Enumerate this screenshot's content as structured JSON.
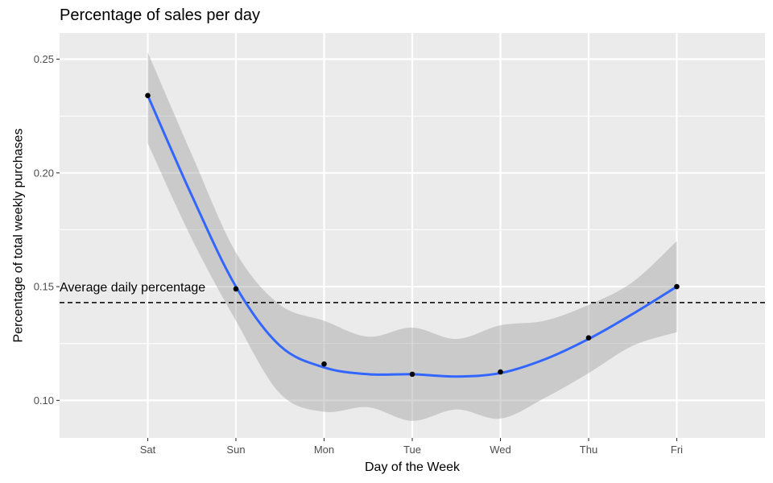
{
  "chart_data": {
    "type": "line",
    "title": "Percentage of sales per day",
    "xlabel": "Day of the Week",
    "ylabel": "Percentage of total weekly purchases",
    "categories": [
      "Sat",
      "Sun",
      "Mon",
      "Tue",
      "Wed",
      "Thu",
      "Fri"
    ],
    "points": [
      0.234,
      0.149,
      0.116,
      0.1115,
      0.1125,
      0.1275,
      0.15
    ],
    "smooth": {
      "x": [
        1,
        1.5,
        2,
        2.5,
        3,
        3.5,
        4,
        4.5,
        5,
        5.5,
        6,
        6.5,
        7
      ],
      "fit": [
        0.234,
        0.19,
        0.15,
        0.124,
        0.1145,
        0.1115,
        0.1115,
        0.1105,
        0.112,
        0.118,
        0.127,
        0.138,
        0.15
      ],
      "lower": [
        0.213,
        0.171,
        0.135,
        0.103,
        0.095,
        0.097,
        0.091,
        0.096,
        0.092,
        0.101,
        0.112,
        0.124,
        0.13
      ],
      "upper": [
        0.253,
        0.208,
        0.165,
        0.142,
        0.135,
        0.128,
        0.132,
        0.127,
        0.133,
        0.135,
        0.142,
        0.152,
        0.17
      ]
    },
    "reference_line": {
      "value": 0.143,
      "label": "Average daily percentage",
      "style": "dashed"
    },
    "yticks": [
      0.1,
      0.15,
      0.2,
      0.25
    ],
    "ytick_labels": [
      "0.10",
      "0.15",
      "0.20",
      "0.25"
    ],
    "xlim": [
      0,
      8
    ],
    "ylim": [
      0.0835,
      0.2615
    ],
    "grid": true,
    "legend": "none",
    "colors": {
      "panel": "#ebebeb",
      "grid": "#ffffff",
      "line": "#3366ff",
      "ribbon": "#999999",
      "points": "#000000",
      "reference": "#000000"
    }
  }
}
